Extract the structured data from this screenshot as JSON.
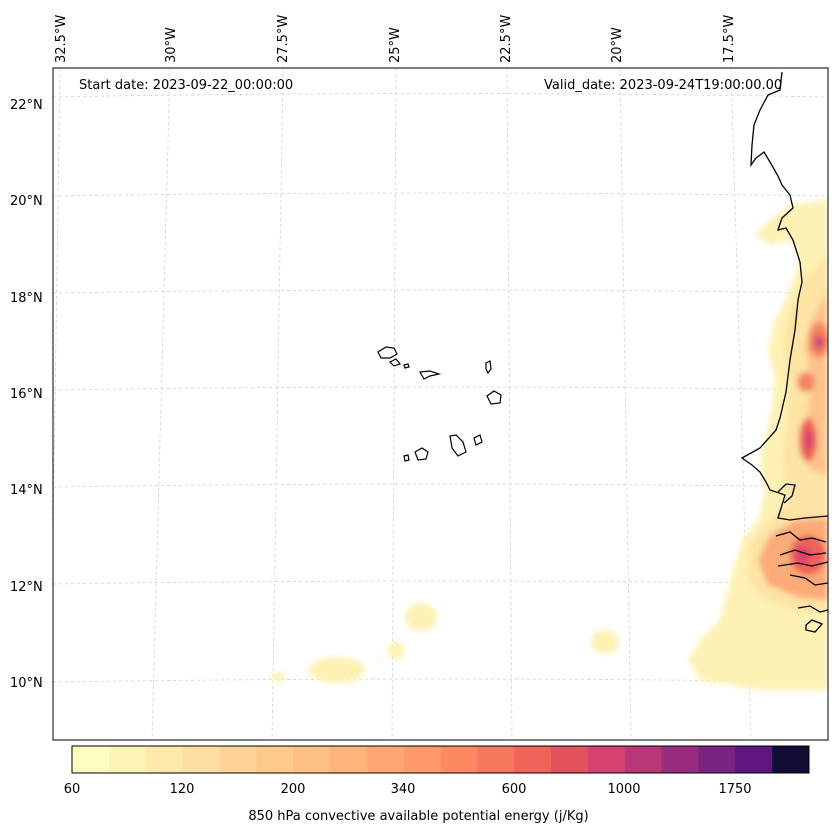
{
  "map": {
    "start_label": "Start date: 2023-09-22_00:00:00",
    "valid_label": "Valid_date: 2023-09-24T19:00:00.00",
    "lat_labels": [
      "22°N",
      "20°N",
      "18°N",
      "16°N",
      "14°N",
      "12°N",
      "10°N"
    ],
    "lon_labels": [
      "32.5°W",
      "30°W",
      "27.5°W",
      "25°W",
      "22.5°W",
      "20°W",
      "17.5°W"
    ],
    "field": "850 hPa convective available potential energy"
  },
  "colorbar": {
    "label": "850 hPa convective available potential energy (j/Kg)",
    "levels": [
      60,
      80,
      100,
      120,
      140,
      160,
      200,
      240,
      280,
      340,
      400,
      480,
      600,
      700,
      800,
      1000,
      1250,
      1500,
      1750,
      2000
    ],
    "tick_labels": [
      "60",
      "120",
      "200",
      "340",
      "600",
      "1000",
      "1750"
    ],
    "colors": [
      "#fcfdbf",
      "#fcf3b5",
      "#fde9aa",
      "#fddea0",
      "#fed395",
      "#fec98d",
      "#febf84",
      "#feb47b",
      "#fea772",
      "#fe9a6a",
      "#fc8961",
      "#f6775c",
      "#ee645a",
      "#e3515c",
      "#d4436e",
      "#b73779",
      "#982d80",
      "#7b2382",
      "#5e177f",
      "#140e36"
    ]
  }
}
